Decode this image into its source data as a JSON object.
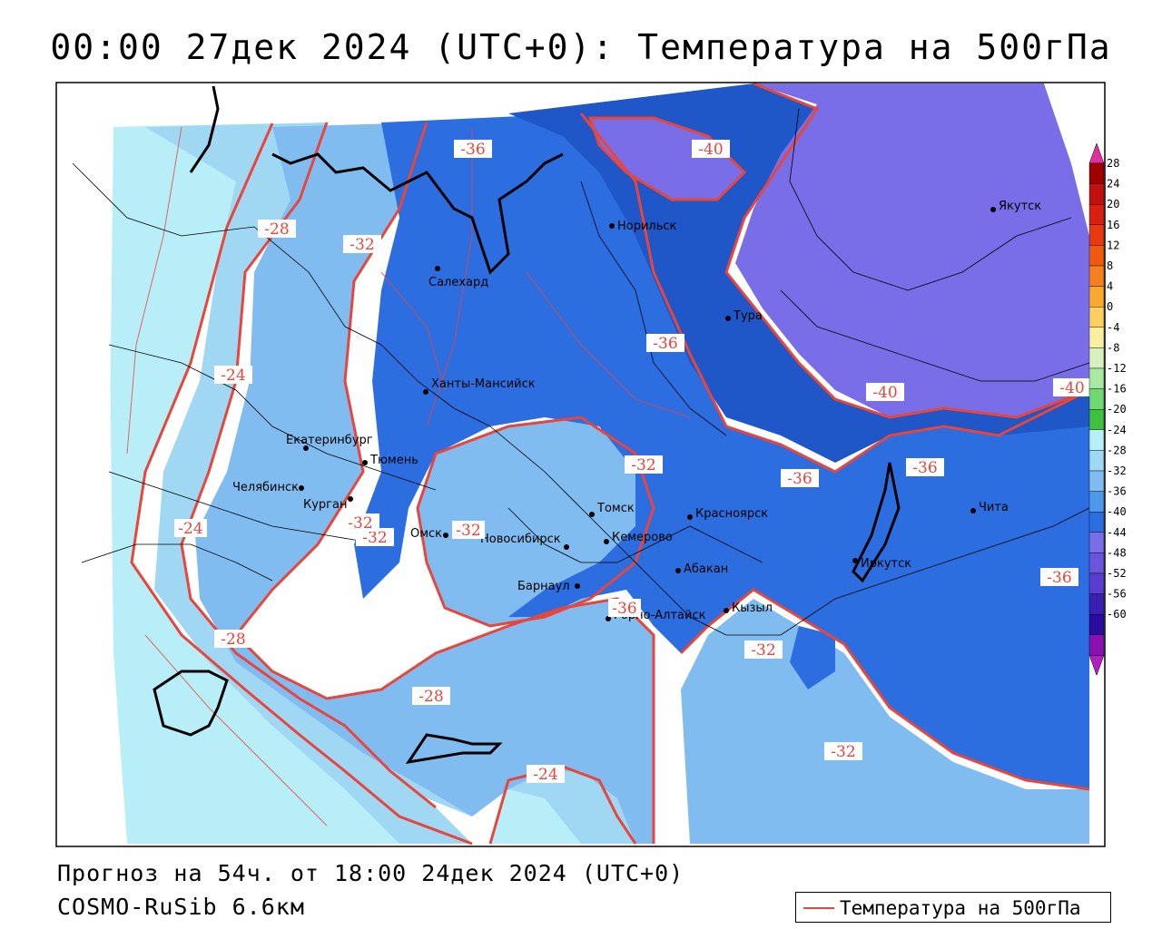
{
  "title": "00:00 27дек 2024 (UTC+0): Температура на 500гПа",
  "footer": {
    "forecast_line": "Прогноз на 54ч. от 18:00 24дек 2024 (UTC+0)",
    "model_line": "COSMO-RuSib 6.6км"
  },
  "legend": {
    "label": "Температура на 500гПа",
    "line_color": "#e8453c"
  },
  "colorbar": {
    "ticks": [
      "28",
      "24",
      "20",
      "16",
      "12",
      "8",
      "4",
      "0",
      "-4",
      "-8",
      "-12",
      "-16",
      "-20",
      "-24",
      "-28",
      "-32",
      "-36",
      "-40",
      "-44",
      "-48",
      "-52",
      "-56",
      "-60"
    ],
    "colors": [
      "#a00000",
      "#c01010",
      "#d82010",
      "#e83a10",
      "#f05a10",
      "#f58020",
      "#f8a830",
      "#fbd060",
      "#f8f0a0",
      "#d8f0c0",
      "#a8e8a0",
      "#70d870",
      "#40c040",
      "#b8eef8",
      "#a0d8f4",
      "#80bcf0",
      "#4e98ea",
      "#2c6ee0",
      "#7a6ee8",
      "#6a54dc",
      "#5a3cd0",
      "#3a20b0",
      "#2a0aa0",
      "#8a10b0"
    ],
    "top_cap_color": "#e0309c",
    "bottom_cap_color": "#b020c0"
  },
  "cities": [
    {
      "name": "Якутск"
    },
    {
      "name": "Норильск"
    },
    {
      "name": "Салехард"
    },
    {
      "name": "Тура"
    },
    {
      "name": "Ханты-Мансийск"
    },
    {
      "name": "Екатеринбург"
    },
    {
      "name": "Тюмень"
    },
    {
      "name": "Челябинск"
    },
    {
      "name": "Курган"
    },
    {
      "name": "Омск"
    },
    {
      "name": "Новосибирск"
    },
    {
      "name": "Томск"
    },
    {
      "name": "Кемерово"
    },
    {
      "name": "Красноярск"
    },
    {
      "name": "Абакан"
    },
    {
      "name": "Барнаул"
    },
    {
      "name": "Горно-Алтайск"
    },
    {
      "name": "Кызыл"
    },
    {
      "name": "Иркутск"
    },
    {
      "name": "Чита"
    }
  ],
  "isotherm_labels": [
    "-36",
    "-40",
    "-28",
    "-32",
    "-36",
    "-24",
    "-40",
    "-40",
    "-32",
    "-36",
    "-36",
    "-24",
    "-32",
    "-32",
    "-36",
    "-28",
    "-28",
    "-32",
    "-32",
    "-24",
    "-32",
    "-36"
  ]
}
